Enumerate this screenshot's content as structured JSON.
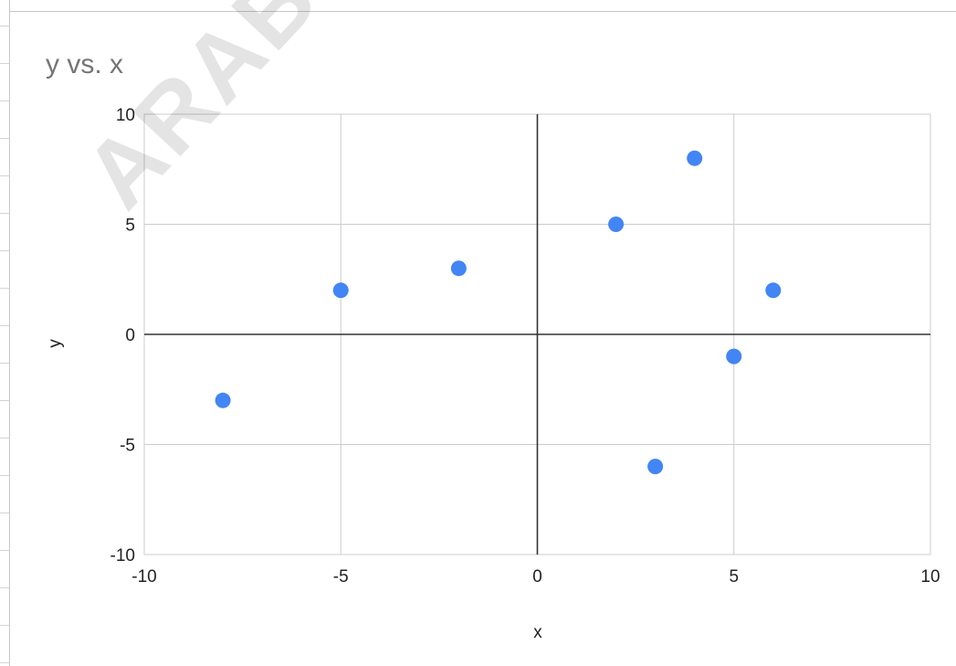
{
  "watermark": "ARABPSYC",
  "chart_data": {
    "type": "scatter",
    "title": "y vs. x",
    "xlabel": "x",
    "ylabel": "y",
    "xlim": [
      -10,
      10
    ],
    "ylim": [
      -10,
      10
    ],
    "xticks": [
      -10,
      -5,
      0,
      5,
      10
    ],
    "yticks": [
      -10,
      -5,
      0,
      5,
      10
    ],
    "grid": true,
    "marker_color": "#4285f4",
    "series": [
      {
        "x": [
          -8,
          -5,
          -2,
          2,
          3,
          4,
          5,
          6
        ],
        "y": [
          -3,
          2,
          3,
          5,
          -6,
          8,
          -1,
          2
        ]
      }
    ]
  }
}
